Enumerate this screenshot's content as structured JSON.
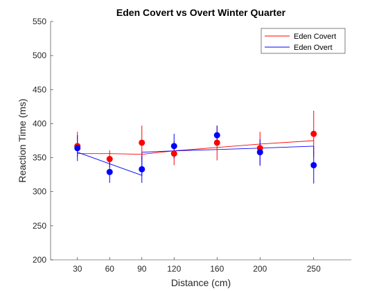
{
  "chart_data": {
    "type": "line",
    "title": "Eden Covert vs Overt Winter Quarter",
    "xlabel": "Distance (cm)",
    "ylabel": "Reaction Time (ms)",
    "xlim": [
      5,
      285
    ],
    "ylim": [
      200,
      550
    ],
    "xticks": [
      30,
      60,
      90,
      120,
      160,
      200,
      250
    ],
    "yticks": [
      200,
      250,
      300,
      350,
      400,
      450,
      500,
      550
    ],
    "grid": false,
    "legend_position": "top-right",
    "series": [
      {
        "name": "Eden Covert",
        "color": "#ff0000",
        "fit_line": {
          "x": [
            30,
            60,
            90,
            120,
            160,
            200,
            250
          ],
          "y": [
            356,
            356,
            355,
            360,
            365,
            370,
            375
          ]
        },
        "points": [
          {
            "x": 30,
            "y": 367,
            "err_low": 351,
            "err_high": 388
          },
          {
            "x": 60,
            "y": 348,
            "err_low": 336,
            "err_high": 361
          },
          {
            "x": 90,
            "y": 372,
            "err_low": 347,
            "err_high": 397
          },
          {
            "x": 120,
            "y": 356,
            "err_low": 339,
            "err_high": 374
          },
          {
            "x": 160,
            "y": 372,
            "err_low": 346,
            "err_high": 397
          },
          {
            "x": 200,
            "y": 364,
            "err_low": 340,
            "err_high": 388
          },
          {
            "x": 250,
            "y": 385,
            "err_low": 351,
            "err_high": 419
          }
        ]
      },
      {
        "name": "Eden Overt",
        "color": "#0000ff",
        "fit_line": {
          "x": [
            30,
            60,
            90,
            90,
            120,
            160,
            200,
            250
          ],
          "y": [
            358,
            341,
            324,
            358,
            360,
            362,
            364,
            367
          ]
        },
        "points": [
          {
            "x": 30,
            "y": 364,
            "err_low": 345,
            "err_high": 383
          },
          {
            "x": 60,
            "y": 329,
            "err_low": 313,
            "err_high": 345
          },
          {
            "x": 90,
            "y": 333,
            "err_low": 313,
            "err_high": 353
          },
          {
            "x": 120,
            "y": 367,
            "err_low": 349,
            "err_high": 385
          },
          {
            "x": 160,
            "y": 383,
            "err_low": 369,
            "err_high": 397
          },
          {
            "x": 200,
            "y": 358,
            "err_low": 338,
            "err_high": 377
          },
          {
            "x": 250,
            "y": 339,
            "err_low": 312,
            "err_high": 367
          }
        ]
      }
    ]
  }
}
